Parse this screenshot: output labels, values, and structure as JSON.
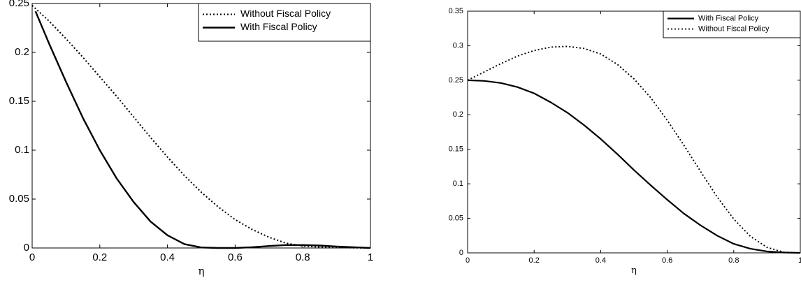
{
  "chart_data": [
    {
      "type": "line",
      "xlabel": "η",
      "ylabel": "",
      "xlim": [
        0,
        1
      ],
      "ylim": [
        0,
        0.25
      ],
      "xticks": [
        "0",
        "0.2",
        "0.4",
        "0.6",
        "0.8",
        "1"
      ],
      "yticks": [
        "0",
        "0.05",
        "0.1",
        "0.15",
        "0.2",
        "0.25"
      ],
      "grid": false,
      "legend": "top-right",
      "series": [
        {
          "name": "Without Fiscal Policy",
          "style": "dotted",
          "x": [
            0,
            0.05,
            0.1,
            0.15,
            0.2,
            0.25,
            0.3,
            0.35,
            0.4,
            0.45,
            0.5,
            0.55,
            0.6,
            0.65,
            0.7,
            0.75,
            0.8,
            0.85,
            0.9,
            0.95,
            1.0
          ],
          "y": [
            0.248,
            0.232,
            0.214,
            0.195,
            0.175,
            0.155,
            0.134,
            0.113,
            0.093,
            0.074,
            0.057,
            0.042,
            0.029,
            0.019,
            0.011,
            0.005,
            0.002,
            0.001,
            0.0005,
            0.0002,
            0.0
          ]
        },
        {
          "name": "With Fiscal Policy",
          "style": "solid",
          "x": [
            0.01,
            0.05,
            0.1,
            0.15,
            0.2,
            0.25,
            0.3,
            0.35,
            0.4,
            0.45,
            0.5,
            0.55,
            0.6,
            0.65,
            0.7,
            0.75,
            0.8,
            0.85,
            0.9,
            0.95,
            1.0
          ],
          "y": [
            0.242,
            0.209,
            0.17,
            0.133,
            0.1,
            0.071,
            0.047,
            0.027,
            0.013,
            0.004,
            0.0005,
            0.0,
            0.0,
            0.0008,
            0.002,
            0.003,
            0.003,
            0.0025,
            0.0015,
            0.0007,
            0.0
          ]
        }
      ]
    },
    {
      "type": "line",
      "xlabel": "η",
      "ylabel": "",
      "xlim": [
        0,
        1
      ],
      "ylim": [
        0,
        0.35
      ],
      "xticks": [
        "0",
        "0.2",
        "0.4",
        "0.6",
        "0.8",
        "1"
      ],
      "yticks": [
        "0",
        "0.05",
        "0.1",
        "0.15",
        "0.2",
        "0.25",
        "0.3",
        "0.35"
      ],
      "grid": false,
      "legend": "top-right",
      "series": [
        {
          "name": "With Fiscal Policy",
          "style": "solid",
          "x": [
            0,
            0.05,
            0.1,
            0.15,
            0.2,
            0.25,
            0.3,
            0.35,
            0.4,
            0.45,
            0.5,
            0.55,
            0.6,
            0.65,
            0.7,
            0.75,
            0.8,
            0.85,
            0.9,
            0.95,
            1.0
          ],
          "y": [
            0.25,
            0.249,
            0.246,
            0.24,
            0.231,
            0.218,
            0.203,
            0.185,
            0.165,
            0.143,
            0.12,
            0.098,
            0.077,
            0.057,
            0.04,
            0.025,
            0.013,
            0.006,
            0.002,
            0.0005,
            0.0
          ]
        },
        {
          "name": "Without Fiscal Policy",
          "style": "dotted",
          "x": [
            0,
            0.05,
            0.1,
            0.15,
            0.2,
            0.25,
            0.3,
            0.35,
            0.4,
            0.45,
            0.5,
            0.55,
            0.6,
            0.65,
            0.7,
            0.75,
            0.8,
            0.85,
            0.9,
            0.95,
            1.0
          ],
          "y": [
            0.25,
            0.262,
            0.274,
            0.285,
            0.293,
            0.298,
            0.299,
            0.296,
            0.288,
            0.273,
            0.252,
            0.225,
            0.192,
            0.156,
            0.118,
            0.081,
            0.049,
            0.024,
            0.008,
            0.001,
            0.0
          ]
        }
      ]
    }
  ]
}
